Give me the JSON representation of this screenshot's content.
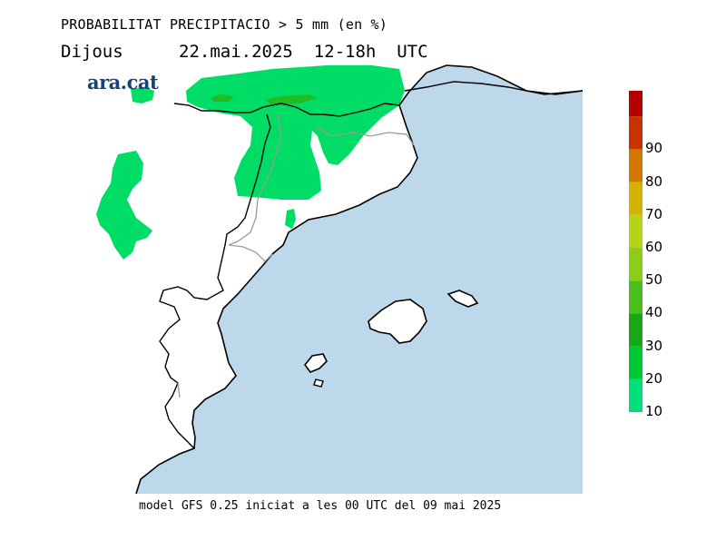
{
  "header": {
    "title": "PROBABILITAT PRECIPITACIO > 5 mm (en %)",
    "day": "Dijous",
    "date_time": "22.mai.2025  12-18h  UTC"
  },
  "brand": {
    "logo_text": "ara.cat"
  },
  "footer": {
    "model_text": "model GFS 0.25 iniciat a les 00 UTC del 09 mai 2025"
  },
  "map": {
    "sea_color": "#bcd8ea",
    "land_color": "#ffffff",
    "precip_color_main": "#00dd66",
    "precip_color_high": "#22bb22",
    "region_labels": []
  },
  "legend": {
    "unit": "%",
    "levels": [
      {
        "value": "10",
        "color": "#00e07a"
      },
      {
        "value": "20",
        "color": "#00c832"
      },
      {
        "value": "30",
        "color": "#1aa61a"
      },
      {
        "value": "40",
        "color": "#4bbe1e"
      },
      {
        "value": "50",
        "color": "#8ccd1a"
      },
      {
        "value": "60",
        "color": "#b8d21a"
      },
      {
        "value": "70",
        "color": "#d2b400"
      },
      {
        "value": "80",
        "color": "#d27800"
      },
      {
        "value": "90",
        "color": "#c83200"
      },
      {
        "value": "",
        "color": "#b40000"
      }
    ]
  }
}
